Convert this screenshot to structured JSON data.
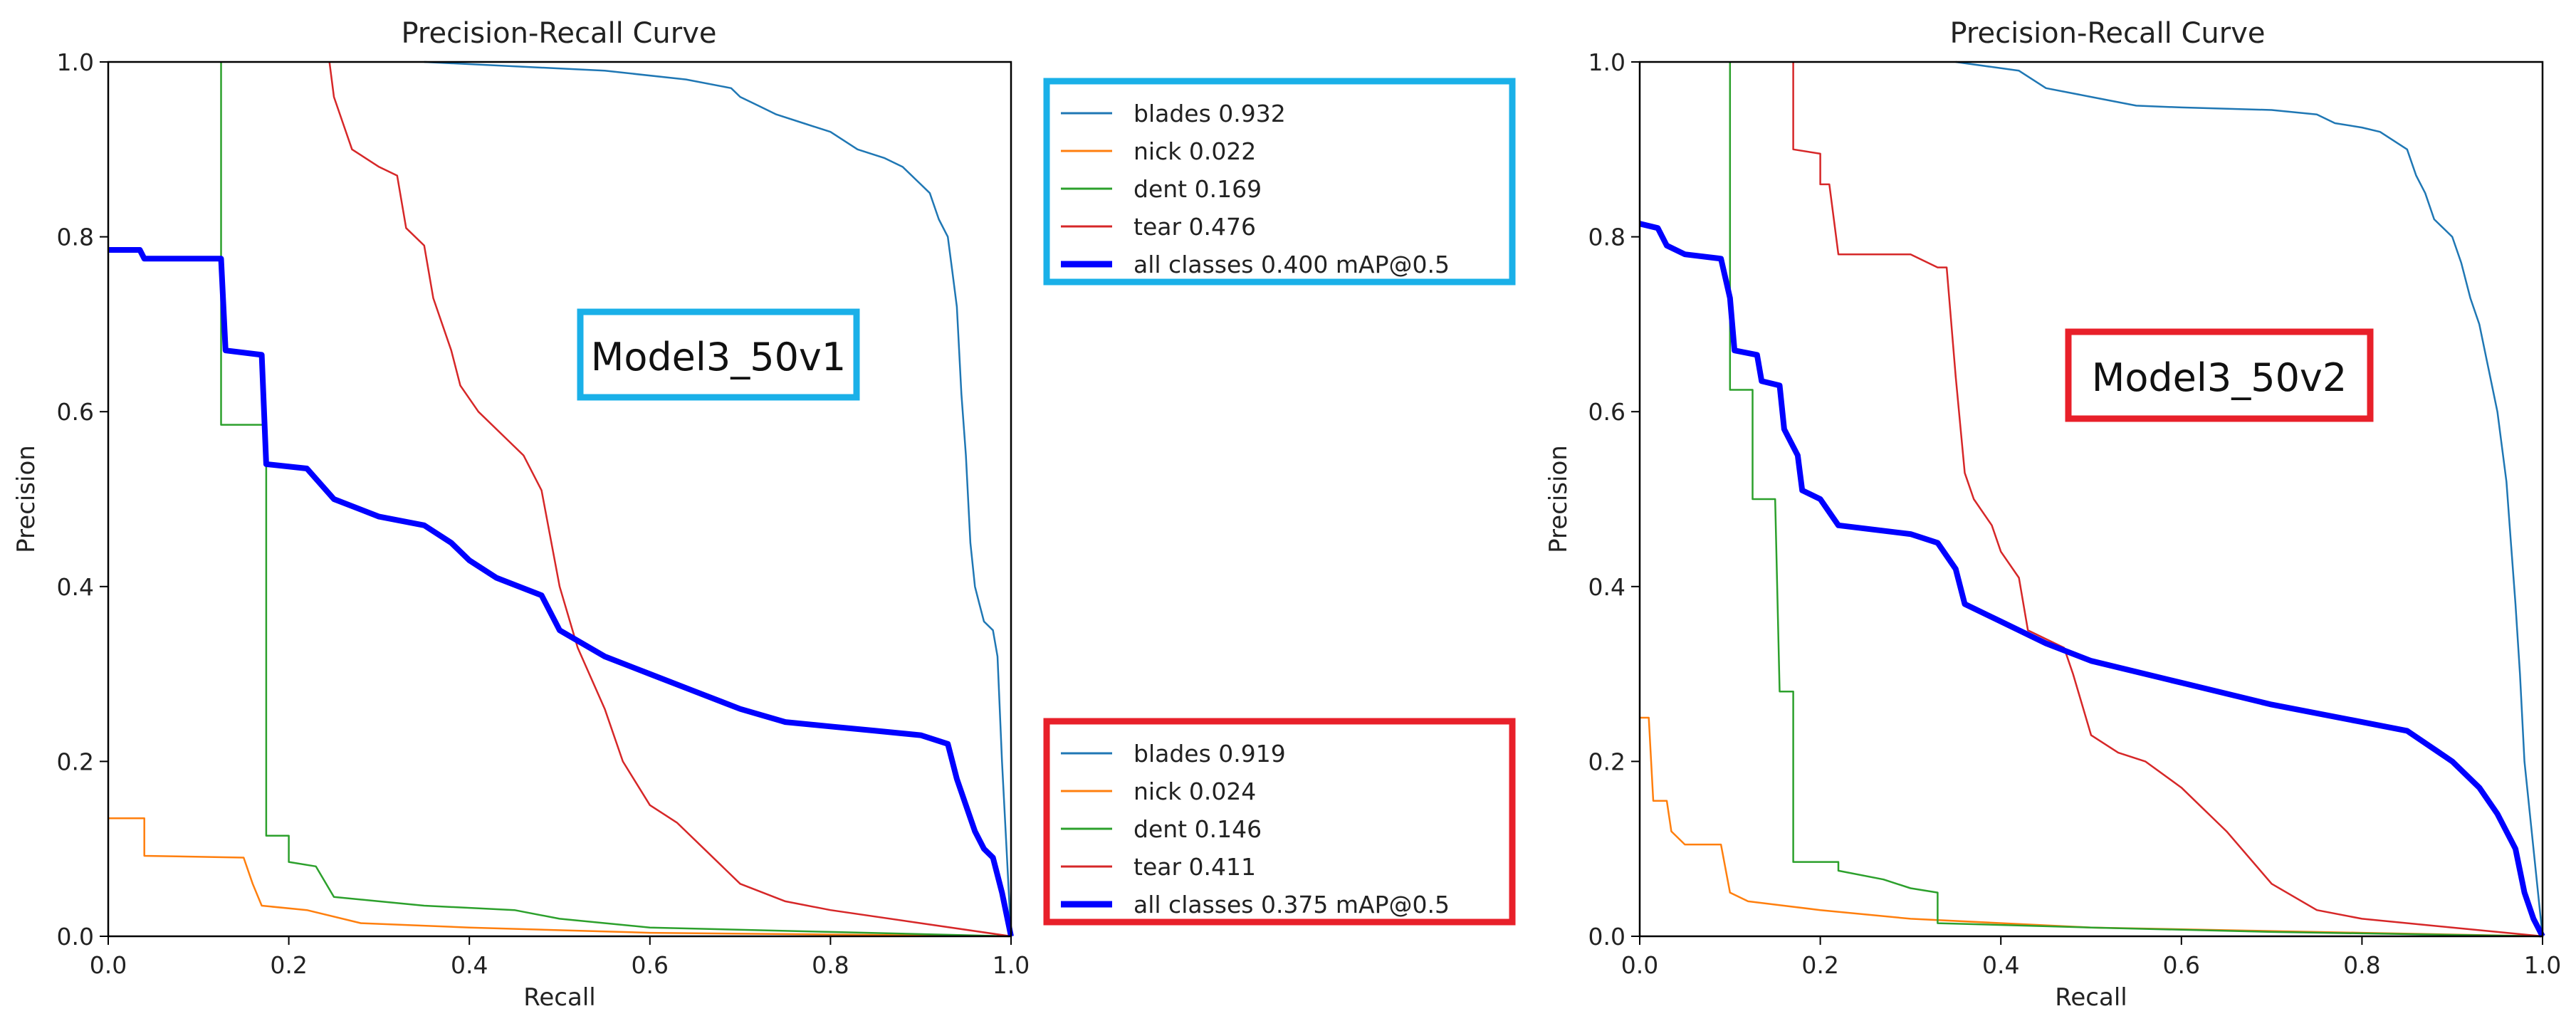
{
  "colors": {
    "blades": "#1f77b4",
    "nick": "#ff7f0e",
    "dent": "#2ca02c",
    "tear": "#d62728",
    "all": "#0000ff",
    "box_v1": "#1ab0e8",
    "box_v2": "#e8202a"
  },
  "legends": {
    "v1": [
      {
        "series": "blades",
        "label": "blades 0.932"
      },
      {
        "series": "nick",
        "label": "nick 0.022"
      },
      {
        "series": "dent",
        "label": "dent 0.169"
      },
      {
        "series": "tear",
        "label": "tear 0.476"
      },
      {
        "series": "all",
        "label": "all classes 0.400 mAP@0.5"
      }
    ],
    "v2": [
      {
        "series": "blades",
        "label": "blades 0.919"
      },
      {
        "series": "nick",
        "label": "nick 0.024"
      },
      {
        "series": "dent",
        "label": "dent 0.146"
      },
      {
        "series": "tear",
        "label": "tear 0.411"
      },
      {
        "series": "all",
        "label": "all classes 0.375 mAP@0.5"
      }
    ]
  },
  "chart_data": [
    {
      "type": "line",
      "title": "Precision-Recall Curve",
      "xlabel": "Recall",
      "ylabel": "Precision",
      "xlim": [
        0,
        1
      ],
      "ylim": [
        0,
        1
      ],
      "xticks": [
        "0.0",
        "0.2",
        "0.4",
        "0.6",
        "0.8",
        "1.0"
      ],
      "yticks": [
        "0.0",
        "0.2",
        "0.4",
        "0.6",
        "0.8",
        "1.0"
      ],
      "annotation": "Model3_50v1",
      "annotation_color": "#1ab0e8",
      "series": [
        {
          "name": "blades",
          "color": "#1f77b4",
          "width": 2.5,
          "points": [
            [
              0.35,
              1.0
            ],
            [
              0.55,
              0.99
            ],
            [
              0.64,
              0.98
            ],
            [
              0.69,
              0.97
            ],
            [
              0.7,
              0.96
            ],
            [
              0.72,
              0.95
            ],
            [
              0.74,
              0.94
            ],
            [
              0.77,
              0.93
            ],
            [
              0.8,
              0.92
            ],
            [
              0.83,
              0.9
            ],
            [
              0.86,
              0.89
            ],
            [
              0.88,
              0.88
            ],
            [
              0.9,
              0.86
            ],
            [
              0.91,
              0.85
            ],
            [
              0.92,
              0.82
            ],
            [
              0.93,
              0.8
            ],
            [
              0.935,
              0.76
            ],
            [
              0.94,
              0.72
            ],
            [
              0.945,
              0.62
            ],
            [
              0.95,
              0.55
            ],
            [
              0.955,
              0.45
            ],
            [
              0.96,
              0.4
            ],
            [
              0.965,
              0.38
            ],
            [
              0.97,
              0.36
            ],
            [
              0.98,
              0.35
            ],
            [
              0.985,
              0.32
            ],
            [
              0.99,
              0.2
            ],
            [
              0.995,
              0.1
            ],
            [
              1.0,
              0.0
            ]
          ]
        },
        {
          "name": "nick",
          "color": "#ff7f0e",
          "width": 2.5,
          "points": [
            [
              0.0,
              0.135
            ],
            [
              0.04,
              0.135
            ],
            [
              0.04,
              0.092
            ],
            [
              0.15,
              0.09
            ],
            [
              0.16,
              0.06
            ],
            [
              0.17,
              0.035
            ],
            [
              0.22,
              0.03
            ],
            [
              0.28,
              0.015
            ],
            [
              0.4,
              0.01
            ],
            [
              0.6,
              0.004
            ],
            [
              0.8,
              0.002
            ],
            [
              1.0,
              0.0
            ]
          ]
        },
        {
          "name": "dent",
          "color": "#2ca02c",
          "width": 2.5,
          "points": [
            [
              0.125,
              1.0
            ],
            [
              0.125,
              0.585
            ],
            [
              0.175,
              0.585
            ],
            [
              0.175,
              0.115
            ],
            [
              0.2,
              0.115
            ],
            [
              0.2,
              0.085
            ],
            [
              0.23,
              0.08
            ],
            [
              0.25,
              0.045
            ],
            [
              0.3,
              0.04
            ],
            [
              0.35,
              0.035
            ],
            [
              0.45,
              0.03
            ],
            [
              0.5,
              0.02
            ],
            [
              0.6,
              0.01
            ],
            [
              0.8,
              0.005
            ],
            [
              1.0,
              0.0
            ]
          ]
        },
        {
          "name": "tear",
          "color": "#d62728",
          "width": 2.5,
          "points": [
            [
              0.245,
              1.0
            ],
            [
              0.25,
              0.96
            ],
            [
              0.26,
              0.93
            ],
            [
              0.27,
              0.9
            ],
            [
              0.3,
              0.88
            ],
            [
              0.32,
              0.87
            ],
            [
              0.33,
              0.81
            ],
            [
              0.35,
              0.79
            ],
            [
              0.36,
              0.73
            ],
            [
              0.38,
              0.67
            ],
            [
              0.39,
              0.63
            ],
            [
              0.41,
              0.6
            ],
            [
              0.44,
              0.57
            ],
            [
              0.46,
              0.55
            ],
            [
              0.48,
              0.51
            ],
            [
              0.5,
              0.4
            ],
            [
              0.52,
              0.33
            ],
            [
              0.55,
              0.26
            ],
            [
              0.57,
              0.2
            ],
            [
              0.6,
              0.15
            ],
            [
              0.63,
              0.13
            ],
            [
              0.66,
              0.1
            ],
            [
              0.7,
              0.06
            ],
            [
              0.75,
              0.04
            ],
            [
              0.8,
              0.03
            ],
            [
              0.9,
              0.015
            ],
            [
              1.0,
              0.0
            ]
          ]
        },
        {
          "name": "all",
          "color": "#0000ff",
          "width": 8,
          "points": [
            [
              0.0,
              0.785
            ],
            [
              0.035,
              0.785
            ],
            [
              0.04,
              0.775
            ],
            [
              0.125,
              0.775
            ],
            [
              0.13,
              0.67
            ],
            [
              0.17,
              0.665
            ],
            [
              0.175,
              0.54
            ],
            [
              0.22,
              0.535
            ],
            [
              0.25,
              0.5
            ],
            [
              0.3,
              0.48
            ],
            [
              0.35,
              0.47
            ],
            [
              0.38,
              0.45
            ],
            [
              0.4,
              0.43
            ],
            [
              0.43,
              0.41
            ],
            [
              0.48,
              0.39
            ],
            [
              0.5,
              0.35
            ],
            [
              0.55,
              0.32
            ],
            [
              0.6,
              0.3
            ],
            [
              0.65,
              0.28
            ],
            [
              0.7,
              0.26
            ],
            [
              0.75,
              0.245
            ],
            [
              0.8,
              0.24
            ],
            [
              0.85,
              0.235
            ],
            [
              0.9,
              0.23
            ],
            [
              0.93,
              0.22
            ],
            [
              0.94,
              0.18
            ],
            [
              0.95,
              0.15
            ],
            [
              0.96,
              0.12
            ],
            [
              0.97,
              0.1
            ],
            [
              0.98,
              0.09
            ],
            [
              0.99,
              0.05
            ],
            [
              1.0,
              0.0
            ]
          ]
        }
      ]
    },
    {
      "type": "line",
      "title": "Precision-Recall Curve",
      "xlabel": "Recall",
      "ylabel": "Precision",
      "xlim": [
        0,
        1
      ],
      "ylim": [
        0,
        1
      ],
      "xticks": [
        "0.0",
        "0.2",
        "0.4",
        "0.6",
        "0.8",
        "1.0"
      ],
      "yticks": [
        "0.0",
        "0.2",
        "0.4",
        "0.6",
        "0.8",
        "1.0"
      ],
      "annotation": "Model3_50v2",
      "annotation_color": "#e8202a",
      "series": [
        {
          "name": "blades",
          "color": "#1f77b4",
          "width": 2.5,
          "points": [
            [
              0.35,
              1.0
            ],
            [
              0.42,
              0.99
            ],
            [
              0.45,
              0.97
            ],
            [
              0.5,
              0.96
            ],
            [
              0.55,
              0.95
            ],
            [
              0.6,
              0.948
            ],
            [
              0.7,
              0.945
            ],
            [
              0.75,
              0.94
            ],
            [
              0.77,
              0.93
            ],
            [
              0.8,
              0.925
            ],
            [
              0.82,
              0.92
            ],
            [
              0.85,
              0.9
            ],
            [
              0.86,
              0.87
            ],
            [
              0.87,
              0.85
            ],
            [
              0.88,
              0.82
            ],
            [
              0.9,
              0.8
            ],
            [
              0.91,
              0.77
            ],
            [
              0.92,
              0.73
            ],
            [
              0.93,
              0.7
            ],
            [
              0.94,
              0.65
            ],
            [
              0.95,
              0.6
            ],
            [
              0.96,
              0.52
            ],
            [
              0.965,
              0.45
            ],
            [
              0.97,
              0.38
            ],
            [
              0.975,
              0.3
            ],
            [
              0.98,
              0.2
            ],
            [
              0.99,
              0.1
            ],
            [
              1.0,
              0.0
            ]
          ]
        },
        {
          "name": "nick",
          "color": "#ff7f0e",
          "width": 2.5,
          "points": [
            [
              0.0,
              0.25
            ],
            [
              0.01,
              0.25
            ],
            [
              0.015,
              0.155
            ],
            [
              0.03,
              0.155
            ],
            [
              0.035,
              0.12
            ],
            [
              0.05,
              0.105
            ],
            [
              0.07,
              0.105
            ],
            [
              0.09,
              0.105
            ],
            [
              0.1,
              0.05
            ],
            [
              0.12,
              0.04
            ],
            [
              0.2,
              0.03
            ],
            [
              0.3,
              0.02
            ],
            [
              0.5,
              0.01
            ],
            [
              0.8,
              0.004
            ],
            [
              1.0,
              0.0
            ]
          ]
        },
        {
          "name": "dent",
          "color": "#2ca02c",
          "width": 2.5,
          "points": [
            [
              0.1,
              1.0
            ],
            [
              0.1,
              0.625
            ],
            [
              0.125,
              0.625
            ],
            [
              0.125,
              0.5
            ],
            [
              0.15,
              0.5
            ],
            [
              0.155,
              0.28
            ],
            [
              0.17,
              0.28
            ],
            [
              0.17,
              0.085
            ],
            [
              0.22,
              0.085
            ],
            [
              0.22,
              0.075
            ],
            [
              0.27,
              0.065
            ],
            [
              0.3,
              0.055
            ],
            [
              0.33,
              0.05
            ],
            [
              0.33,
              0.015
            ],
            [
              0.5,
              0.01
            ],
            [
              0.7,
              0.005
            ],
            [
              1.0,
              0.0
            ]
          ]
        },
        {
          "name": "tear",
          "color": "#d62728",
          "width": 2.5,
          "points": [
            [
              0.17,
              1.0
            ],
            [
              0.17,
              0.9
            ],
            [
              0.2,
              0.895
            ],
            [
              0.2,
              0.86
            ],
            [
              0.21,
              0.86
            ],
            [
              0.22,
              0.78
            ],
            [
              0.3,
              0.78
            ],
            [
              0.33,
              0.765
            ],
            [
              0.34,
              0.765
            ],
            [
              0.35,
              0.64
            ],
            [
              0.36,
              0.53
            ],
            [
              0.37,
              0.5
            ],
            [
              0.39,
              0.47
            ],
            [
              0.4,
              0.44
            ],
            [
              0.42,
              0.41
            ],
            [
              0.43,
              0.35
            ],
            [
              0.45,
              0.34
            ],
            [
              0.47,
              0.33
            ],
            [
              0.48,
              0.3
            ],
            [
              0.5,
              0.23
            ],
            [
              0.53,
              0.21
            ],
            [
              0.56,
              0.2
            ],
            [
              0.6,
              0.17
            ],
            [
              0.62,
              0.15
            ],
            [
              0.65,
              0.12
            ],
            [
              0.7,
              0.06
            ],
            [
              0.75,
              0.03
            ],
            [
              0.8,
              0.02
            ],
            [
              0.9,
              0.01
            ],
            [
              1.0,
              0.0
            ]
          ]
        },
        {
          "name": "all",
          "color": "#0000ff",
          "width": 8,
          "points": [
            [
              0.0,
              0.815
            ],
            [
              0.02,
              0.81
            ],
            [
              0.03,
              0.79
            ],
            [
              0.05,
              0.78
            ],
            [
              0.09,
              0.775
            ],
            [
              0.1,
              0.73
            ],
            [
              0.105,
              0.67
            ],
            [
              0.13,
              0.665
            ],
            [
              0.135,
              0.635
            ],
            [
              0.155,
              0.63
            ],
            [
              0.16,
              0.58
            ],
            [
              0.175,
              0.55
            ],
            [
              0.18,
              0.51
            ],
            [
              0.2,
              0.5
            ],
            [
              0.22,
              0.47
            ],
            [
              0.3,
              0.46
            ],
            [
              0.33,
              0.45
            ],
            [
              0.35,
              0.42
            ],
            [
              0.36,
              0.38
            ],
            [
              0.4,
              0.36
            ],
            [
              0.45,
              0.335
            ],
            [
              0.5,
              0.315
            ],
            [
              0.6,
              0.29
            ],
            [
              0.7,
              0.265
            ],
            [
              0.8,
              0.245
            ],
            [
              0.85,
              0.235
            ],
            [
              0.9,
              0.2
            ],
            [
              0.93,
              0.17
            ],
            [
              0.95,
              0.14
            ],
            [
              0.97,
              0.1
            ],
            [
              0.98,
              0.05
            ],
            [
              0.99,
              0.02
            ],
            [
              1.0,
              0.0
            ]
          ]
        }
      ]
    }
  ]
}
